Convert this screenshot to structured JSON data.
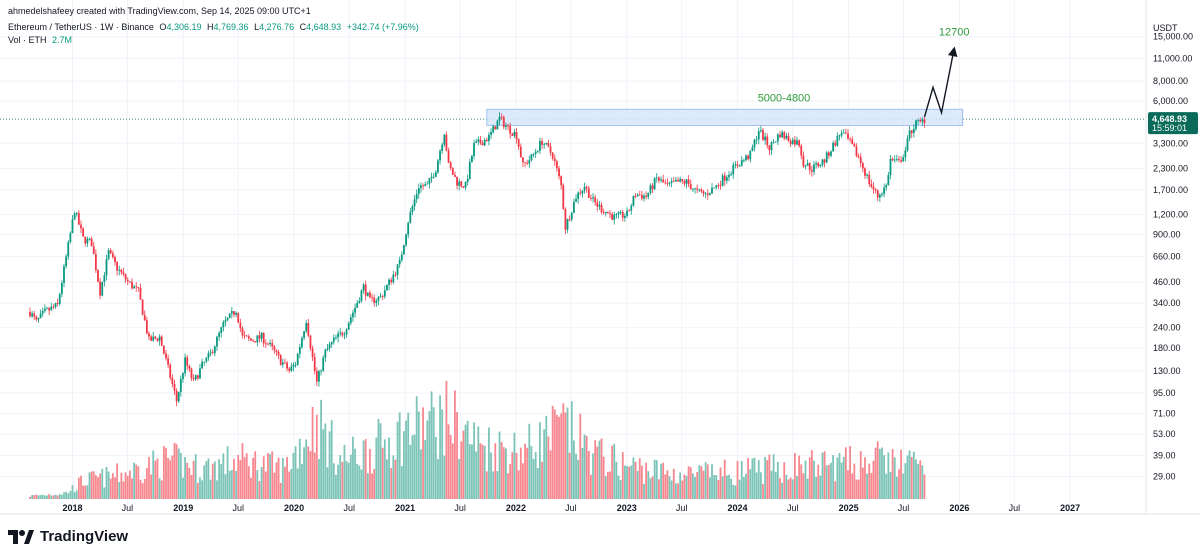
{
  "header": {
    "credit": "ahmedelshafeey created with TradingView.com, Sep 14, 2025 09:00 UTC+1",
    "symbol": "Ethereum / TetherUS · 1W · Binance",
    "o_label": "O",
    "o_value": "4,306.19",
    "h_label": "H",
    "h_value": "4,769.36",
    "l_label": "L",
    "l_value": "4,276.76",
    "c_label": "C",
    "c_value": "4,648.93",
    "change": "+342.74 (+7.96%)",
    "vol_label": "Vol · ETH",
    "vol_value": "2.7M"
  },
  "brand": {
    "name": "TradingView"
  },
  "price_axis": {
    "currency": "USDT",
    "ticks": [
      "15,000.00",
      "11,000.00",
      "8,000.00",
      "6,000.00",
      "3,300.00",
      "2,300.00",
      "1,700.00",
      "1,200.00",
      "900.00",
      "660.00",
      "460.00",
      "340.00",
      "240.00",
      "180.00",
      "130.00",
      "95.00",
      "71.00",
      "53.00",
      "39.00",
      "29.00"
    ],
    "current_price": "4,648.93",
    "countdown": "15:59:01"
  },
  "annotations": {
    "zone_label": "5000-4800",
    "target_label": "12700"
  },
  "colors": {
    "up": "#089981",
    "down": "#f23645",
    "vol_up": "#7cc4b8",
    "vol_down": "#f7878f",
    "zone_fill": "#d6e6fb",
    "zone_stroke": "#8fb6ee",
    "label_green": "#2e9b3a",
    "badge": "#0b6b5a",
    "grid": "#f0f3fa"
  },
  "chart_data": {
    "type": "candlestick",
    "title": "Ethereum / TetherUS · 1W · Binance",
    "y_scale": "log",
    "ylim": [
      80,
      16500
    ],
    "xlim": [
      "2017-08-14",
      "2027-06-01"
    ],
    "x_tick_labels": [
      "2018",
      "Jul",
      "2019",
      "Jul",
      "2020",
      "Jul",
      "2021",
      "Jul",
      "2022",
      "Jul",
      "2023",
      "Jul",
      "2024",
      "Jul",
      "2025",
      "Jul",
      "2026",
      "Jul",
      "2027"
    ],
    "x_tick_dates": [
      "2018-01-01",
      "2018-07-01",
      "2019-01-01",
      "2019-07-01",
      "2020-01-01",
      "2020-07-01",
      "2021-01-01",
      "2021-07-01",
      "2022-01-01",
      "2022-07-01",
      "2023-01-01",
      "2023-07-01",
      "2024-01-01",
      "2024-07-01",
      "2025-01-01",
      "2025-07-01",
      "2026-01-01",
      "2026-07-01",
      "2027-01-01"
    ],
    "price_path": [
      [
        "2017-08-14",
        300
      ],
      [
        "2017-09-04",
        260
      ],
      [
        "2017-10-02",
        300
      ],
      [
        "2017-11-13",
        330
      ],
      [
        "2017-12-11",
        650
      ],
      [
        "2018-01-08",
        1280
      ],
      [
        "2018-02-05",
        850
      ],
      [
        "2018-03-05",
        800
      ],
      [
        "2018-04-02",
        400
      ],
      [
        "2018-04-30",
        700
      ],
      [
        "2018-05-28",
        560
      ],
      [
        "2018-07-02",
        460
      ],
      [
        "2018-08-06",
        400
      ],
      [
        "2018-09-10",
        200
      ],
      [
        "2018-10-15",
        210
      ],
      [
        "2018-11-19",
        120
      ],
      [
        "2018-12-10",
        85
      ],
      [
        "2019-01-07",
        150
      ],
      [
        "2019-02-04",
        110
      ],
      [
        "2019-03-04",
        140
      ],
      [
        "2019-04-01",
        165
      ],
      [
        "2019-05-13",
        250
      ],
      [
        "2019-06-24",
        310
      ],
      [
        "2019-07-15",
        210
      ],
      [
        "2019-08-12",
        200
      ],
      [
        "2019-09-16",
        210
      ],
      [
        "2019-10-14",
        185
      ],
      [
        "2019-11-18",
        150
      ],
      [
        "2019-12-16",
        130
      ],
      [
        "2020-01-06",
        145
      ],
      [
        "2020-02-10",
        270
      ],
      [
        "2020-03-09",
        130
      ],
      [
        "2020-03-16",
        110
      ],
      [
        "2020-04-13",
        170
      ],
      [
        "2020-05-11",
        200
      ],
      [
        "2020-06-15",
        230
      ],
      [
        "2020-07-20",
        320
      ],
      [
        "2020-08-17",
        430
      ],
      [
        "2020-09-07",
        350
      ],
      [
        "2020-10-12",
        370
      ],
      [
        "2020-11-16",
        480
      ],
      [
        "2020-12-14",
        600
      ],
      [
        "2021-01-11",
        1100
      ],
      [
        "2021-02-15",
        1800
      ],
      [
        "2021-03-15",
        1800
      ],
      [
        "2021-04-12",
        2300
      ],
      [
        "2021-05-10",
        3900
      ],
      [
        "2021-05-24",
        2400
      ],
      [
        "2021-06-21",
        1900
      ],
      [
        "2021-07-19",
        1800
      ],
      [
        "2021-08-16",
        3200
      ],
      [
        "2021-09-13",
        3400
      ],
      [
        "2021-10-04",
        3600
      ],
      [
        "2021-11-08",
        4700
      ],
      [
        "2021-12-06",
        4100
      ],
      [
        "2022-01-03",
        3700
      ],
      [
        "2022-01-24",
        2400
      ],
      [
        "2022-02-21",
        2700
      ],
      [
        "2022-03-28",
        3400
      ],
      [
        "2022-05-02",
        2800
      ],
      [
        "2022-05-30",
        1800
      ],
      [
        "2022-06-13",
        1000
      ],
      [
        "2022-07-18",
        1550
      ],
      [
        "2022-08-15",
        1800
      ],
      [
        "2022-09-12",
        1450
      ],
      [
        "2022-10-10",
        1300
      ],
      [
        "2022-11-07",
        1200
      ],
      [
        "2022-11-21",
        1150
      ],
      [
        "2023-01-02",
        1200
      ],
      [
        "2023-01-30",
        1600
      ],
      [
        "2023-03-06",
        1550
      ],
      [
        "2023-04-10",
        2000
      ],
      [
        "2023-05-15",
        1800
      ],
      [
        "2023-06-19",
        1900
      ],
      [
        "2023-07-17",
        1900
      ],
      [
        "2023-08-21",
        1650
      ],
      [
        "2023-09-18",
        1600
      ],
      [
        "2023-10-23",
        1800
      ],
      [
        "2023-11-20",
        2050
      ],
      [
        "2023-12-11",
        2250
      ],
      [
        "2024-01-08",
        2500
      ],
      [
        "2024-02-12",
        2800
      ],
      [
        "2024-03-11",
        4000
      ],
      [
        "2024-04-15",
        3100
      ],
      [
        "2024-05-20",
        3800
      ],
      [
        "2024-06-17",
        3500
      ],
      [
        "2024-07-22",
        3300
      ],
      [
        "2024-08-05",
        2500
      ],
      [
        "2024-09-02",
        2300
      ],
      [
        "2024-10-14",
        2600
      ],
      [
        "2024-11-11",
        3200
      ],
      [
        "2024-12-09",
        3900
      ],
      [
        "2025-01-06",
        3300
      ],
      [
        "2025-02-03",
        2700
      ],
      [
        "2025-03-10",
        1900
      ],
      [
        "2025-04-07",
        1550
      ],
      [
        "2025-05-05",
        1800
      ],
      [
        "2025-05-19",
        2600
      ],
      [
        "2025-06-16",
        2500
      ],
      [
        "2025-07-07",
        3000
      ],
      [
        "2025-07-21",
        3800
      ],
      [
        "2025-08-11",
        4400
      ],
      [
        "2025-08-25",
        4400
      ],
      [
        "2025-09-08",
        4650
      ]
    ],
    "volume_series": {
      "name": "Vol · ETH",
      "note_values_relative": true,
      "path": [
        [
          "2017-08-14",
          0.1
        ],
        [
          "2017-12-11",
          0.2
        ],
        [
          "2018-02-05",
          0.6
        ],
        [
          "2018-06-01",
          0.8
        ],
        [
          "2018-11-19",
          1.3
        ],
        [
          "2019-03-01",
          1.0
        ],
        [
          "2019-07-01",
          1.3
        ],
        [
          "2019-12-01",
          1.0
        ],
        [
          "2020-03-16",
          2.6
        ],
        [
          "2020-06-01",
          1.3
        ],
        [
          "2020-09-01",
          1.6
        ],
        [
          "2021-01-11",
          2.3
        ],
        [
          "2021-05-24",
          2.7
        ],
        [
          "2021-09-01",
          1.8
        ],
        [
          "2022-01-24",
          1.6
        ],
        [
          "2022-06-13",
          2.4
        ],
        [
          "2022-09-12",
          1.5
        ],
        [
          "2023-01-01",
          1.1
        ],
        [
          "2023-07-01",
          0.8
        ],
        [
          "2024-01-01",
          0.9
        ],
        [
          "2024-08-05",
          1.1
        ],
        [
          "2025-02-03",
          1.2
        ],
        [
          "2025-04-07",
          1.3
        ],
        [
          "2025-09-08",
          1.1
        ]
      ]
    },
    "zone": {
      "label": "5000-4800",
      "x_start": "2021-09-27",
      "x_end": "2026-01-12",
      "y_low": 4250,
      "y_high": 5350
    },
    "projection_path": [
      [
        "2025-09-08",
        4800
      ],
      [
        "2025-10-06",
        7300
      ],
      [
        "2025-11-03",
        5100
      ],
      [
        "2025-12-15",
        12700
      ]
    ],
    "projection_target": "12700",
    "current_price_line": 4648.93
  }
}
